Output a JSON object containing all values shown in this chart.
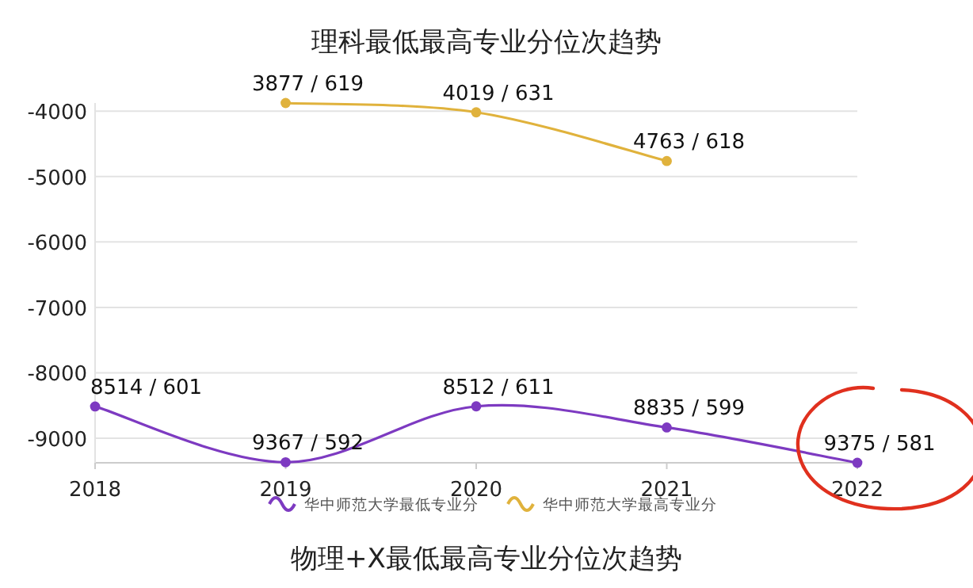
{
  "chart_data": {
    "type": "line",
    "title": "理科最低最高专业分位次趋势",
    "categories": [
      "2018",
      "2019",
      "2020",
      "2021",
      "2022"
    ],
    "series": [
      {
        "name": "华中师范大学最低专业分",
        "color": "#7d3ac1",
        "values": [
          -8514,
          -9367,
          -8512,
          -8835,
          -9375
        ]
      },
      {
        "name": "华中师范大学最高专业分",
        "color": "#e0b23c",
        "values": [
          null,
          -3877,
          -4019,
          -4763,
          null
        ]
      }
    ],
    "ylim": [
      -9375,
      -3877
    ],
    "yticks": [
      -9000,
      -8000,
      -7000,
      -6000,
      -5000,
      -4000
    ],
    "grid": "y",
    "legend": "bottom",
    "marker": "circle",
    "line_style": "solid",
    "annotations": [
      "物理+X最低最高专业分位次趋势",
      {
        "text": "8514 / 601",
        "x": "2018",
        "y": -8514
      },
      {
        "text": "9367 / 592",
        "x": "2019",
        "y": -9367
      },
      {
        "text": "8512 / 611",
        "x": "2020",
        "y": -8512
      },
      {
        "text": "8835 / 599",
        "x": "2021",
        "y": -8835
      },
      {
        "text": "9375 / 581",
        "x": "2022",
        "y": -9375
      },
      {
        "text": "3877 / 619",
        "x": "2019",
        "y": -3877
      },
      {
        "text": "4019 / 631",
        "x": "2020",
        "y": -4019
      },
      {
        "text": "4763 / 618",
        "x": "2021",
        "y": -4763
      }
    ]
  }
}
